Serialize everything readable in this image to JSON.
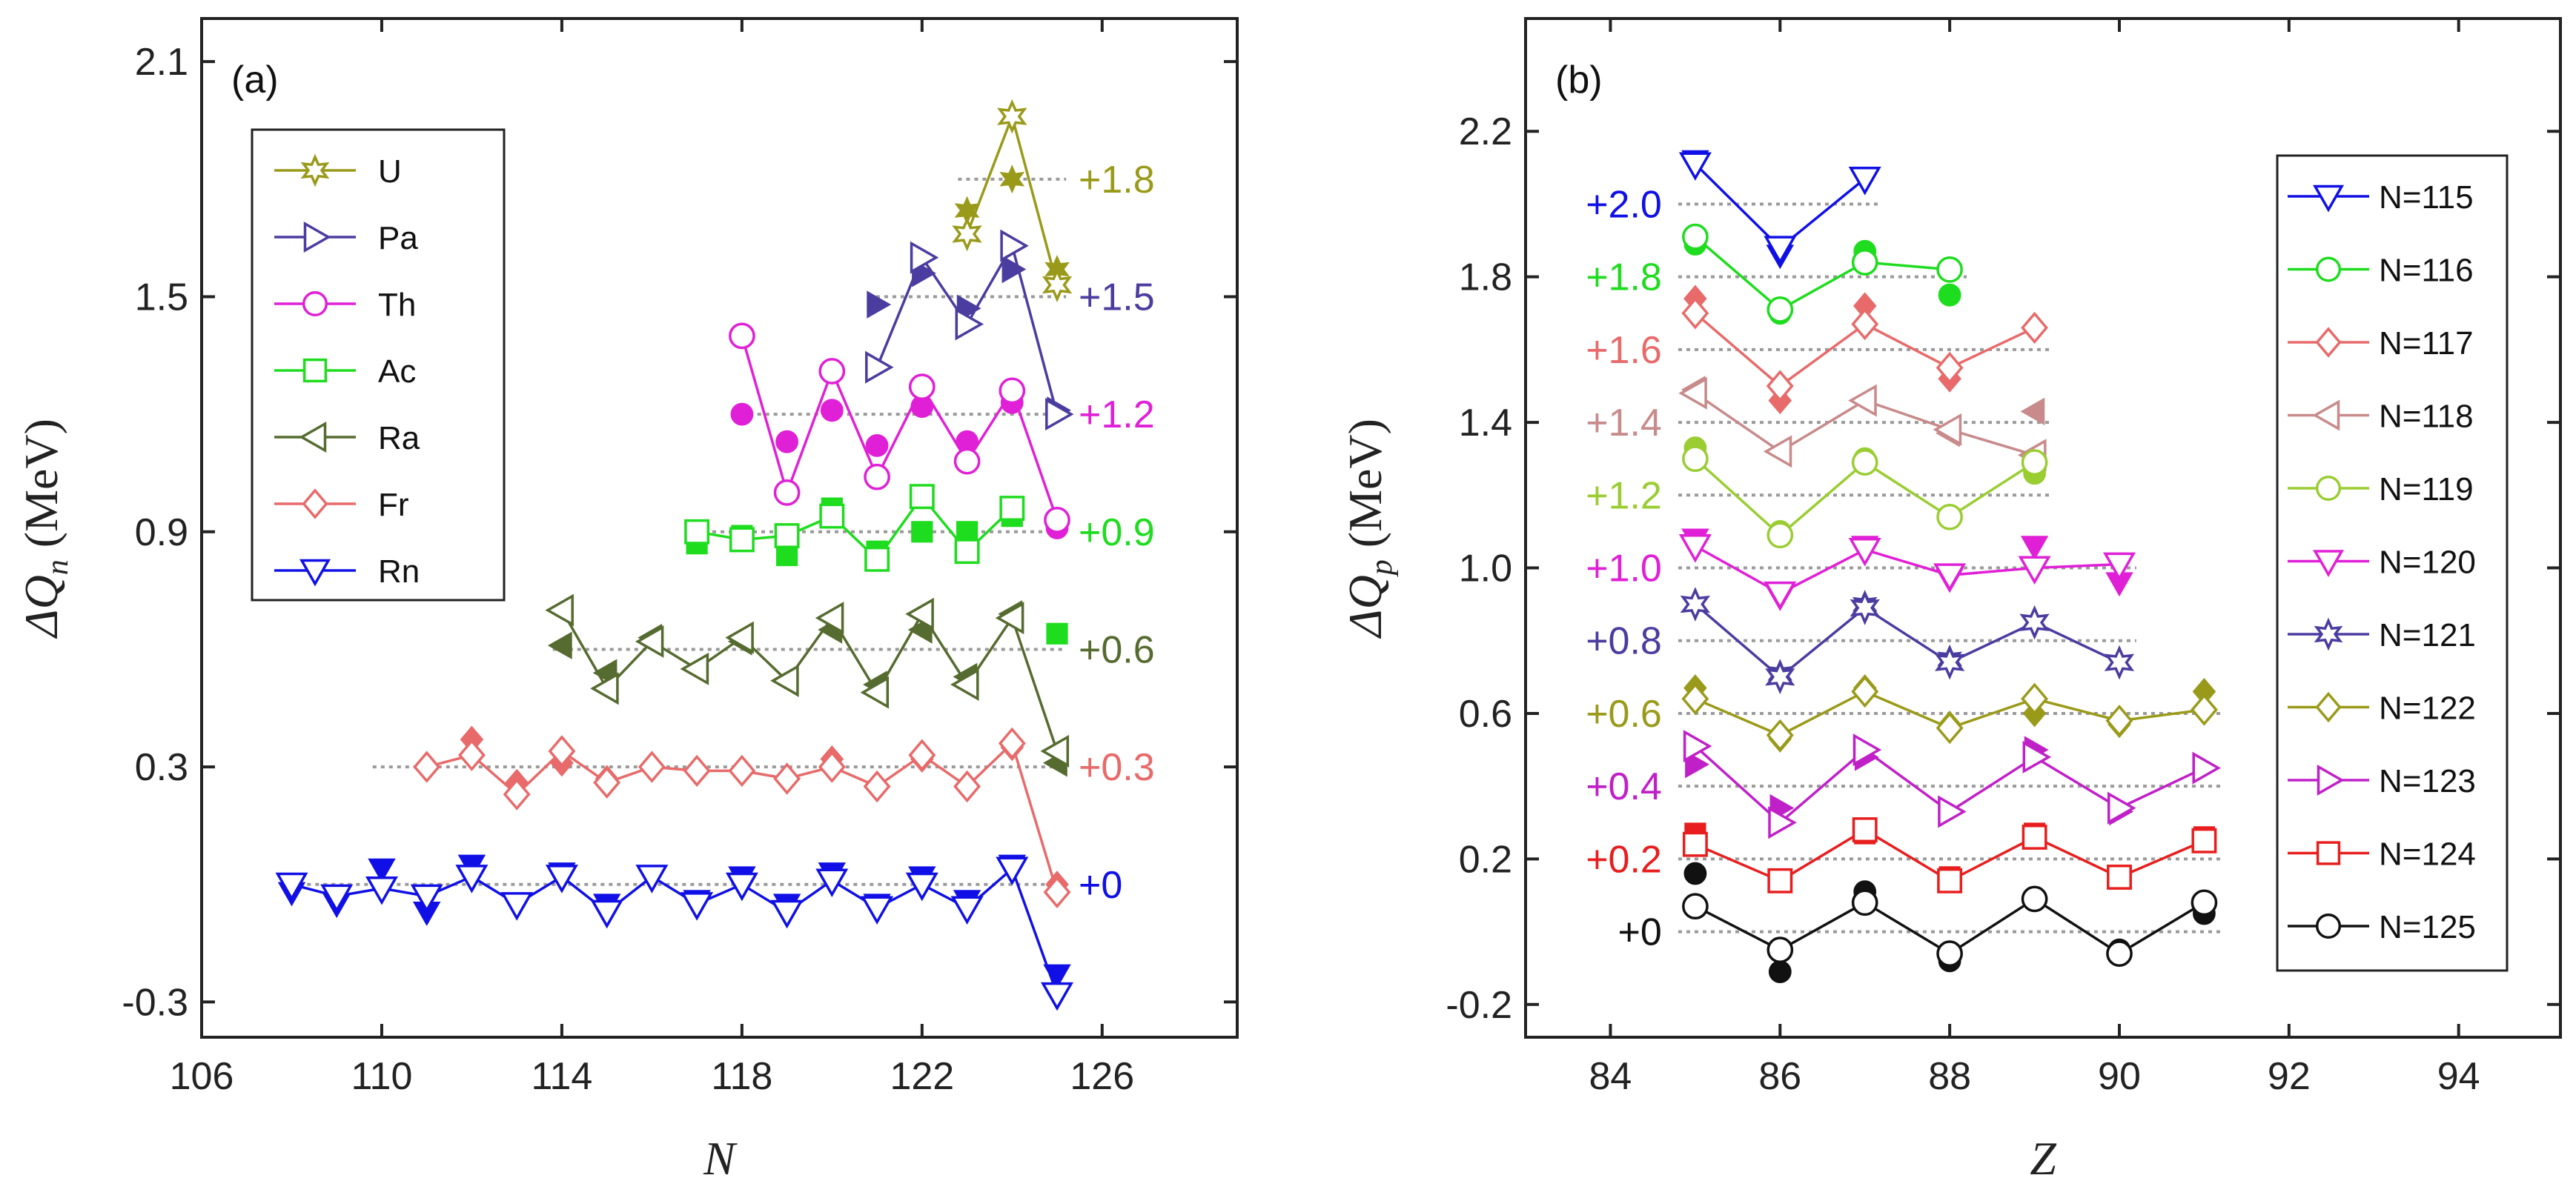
{
  "chart_data": [
    {
      "type": "line",
      "panel_label": "(a)",
      "xlabel": "N",
      "ylabel": "ΔQ",
      "ylabel_sub": "n",
      "ylabel_unit": " (MeV)",
      "xlim": [
        106,
        129
      ],
      "ylim": [
        -0.39,
        2.21
      ],
      "xticks": [
        "106",
        "110",
        "114",
        "118",
        "122",
        "126"
      ],
      "xtick_values": [
        106,
        110,
        114,
        118,
        122,
        126
      ],
      "yticks": [
        "-0.3",
        "0.3",
        "0.9",
        "1.5",
        "2.1"
      ],
      "ytick_values": [
        -0.3,
        0.3,
        0.9,
        1.5,
        2.1
      ],
      "legend_placement": "upper-left",
      "series": [
        {
          "name": "U",
          "color": "#9a9a1a",
          "marker": "star",
          "offset_label": "+1.8",
          "offset": 1.8,
          "x_range": [
            123,
            125
          ],
          "x": [
            123,
            124,
            125
          ],
          "y": [
            1.66,
            1.96,
            1.53
          ],
          "x_filled": [
            123,
            124,
            125
          ],
          "y_filled": [
            1.72,
            1.8,
            1.57
          ]
        },
        {
          "name": "Pa",
          "color": "#4b3ca0",
          "marker": "triangle-right",
          "offset_label": "+1.5",
          "offset": 1.5,
          "x_range": [
            121,
            125
          ],
          "x": [
            121,
            122,
            123,
            124,
            125
          ],
          "y": [
            1.32,
            1.6,
            1.43,
            1.63,
            1.2
          ],
          "x_filled": [
            121,
            122,
            123,
            124,
            125
          ],
          "y_filled": [
            1.48,
            1.56,
            1.47,
            1.57,
            1.21
          ]
        },
        {
          "name": "Th",
          "color": "#e020d6",
          "marker": "circle",
          "offset_label": "+1.2",
          "offset": 1.2,
          "x_range": [
            118,
            125
          ],
          "x": [
            118,
            119,
            120,
            121,
            122,
            123,
            124,
            125
          ],
          "y": [
            1.4,
            1.0,
            1.31,
            1.04,
            1.27,
            1.08,
            1.26,
            0.93
          ],
          "x_filled": [
            118,
            119,
            120,
            121,
            122,
            123,
            124,
            125
          ],
          "y_filled": [
            1.2,
            1.13,
            1.21,
            1.12,
            1.22,
            1.13,
            1.23,
            0.91
          ]
        },
        {
          "name": "Ac",
          "color": "#1edc1e",
          "marker": "square",
          "offset_label": "+0.9",
          "offset": 0.9,
          "x_range": [
            117,
            125
          ],
          "x": [
            117,
            118,
            119,
            120,
            121,
            122,
            123,
            124
          ],
          "y": [
            0.9,
            0.88,
            0.89,
            0.94,
            0.83,
            0.99,
            0.85,
            0.96
          ],
          "x_filled": [
            117,
            118,
            119,
            120,
            121,
            122,
            123,
            124,
            125
          ],
          "y_filled": [
            0.87,
            0.89,
            0.84,
            0.96,
            0.85,
            0.9,
            0.9,
            0.94,
            0.64
          ]
        },
        {
          "name": "Ra",
          "color": "#556b2f",
          "marker": "triangle-left",
          "offset_label": "+0.6",
          "offset": 0.6,
          "x_range": [
            114,
            125
          ],
          "x": [
            114,
            115,
            116,
            117,
            118,
            119,
            120,
            121,
            122,
            123,
            124,
            125
          ],
          "y": [
            0.7,
            0.5,
            0.62,
            0.55,
            0.63,
            0.52,
            0.68,
            0.49,
            0.69,
            0.51,
            0.68,
            0.34
          ],
          "x_filled": [
            114,
            115,
            116,
            117,
            118,
            119,
            120,
            121,
            122,
            123,
            124,
            125
          ],
          "y_filled": [
            0.61,
            0.54,
            0.63,
            0.55,
            0.62,
            0.52,
            0.65,
            0.51,
            0.65,
            0.53,
            0.69,
            0.31
          ]
        },
        {
          "name": "Fr",
          "color": "#e86a6a",
          "marker": "diamond",
          "offset_label": "+0.3",
          "offset": 0.3,
          "x_range": [
            110,
            125
          ],
          "x": [
            111,
            112,
            113,
            114,
            115,
            116,
            117,
            118,
            119,
            120,
            121,
            122,
            123,
            124,
            125
          ],
          "y": [
            0.3,
            0.33,
            0.23,
            0.34,
            0.26,
            0.3,
            0.29,
            0.29,
            0.27,
            0.3,
            0.25,
            0.33,
            0.25,
            0.36,
            -0.02
          ],
          "x_filled": [
            111,
            112,
            113,
            114,
            115,
            116,
            117,
            118,
            119,
            120,
            121,
            122,
            123,
            124,
            125
          ],
          "y_filled": [
            0.3,
            0.37,
            0.26,
            0.31,
            0.27,
            0.3,
            0.29,
            0.29,
            0.27,
            0.32,
            0.25,
            0.32,
            0.25,
            0.35,
            0.0
          ]
        },
        {
          "name": "Rn",
          "color": "#1010e6",
          "marker": "triangle-down",
          "offset_label": "+0",
          "offset": 0,
          "x_range": [
            108,
            125
          ],
          "x": [
            108,
            109,
            110,
            111,
            112,
            113,
            114,
            115,
            116,
            117,
            118,
            119,
            120,
            121,
            122,
            123,
            124,
            125
          ],
          "y": [
            0.0,
            -0.03,
            -0.01,
            -0.03,
            0.02,
            -0.05,
            0.02,
            -0.07,
            0.02,
            -0.05,
            0.0,
            -0.07,
            0.01,
            -0.06,
            0.0,
            -0.06,
            0.04,
            -0.28
          ],
          "x_filled": [
            108,
            109,
            110,
            111,
            112,
            113,
            114,
            115,
            116,
            117,
            118,
            119,
            120,
            121,
            122,
            123,
            124,
            125
          ],
          "y_filled": [
            -0.02,
            -0.05,
            0.04,
            -0.07,
            0.05,
            -0.05,
            0.03,
            -0.05,
            0.02,
            -0.04,
            0.02,
            -0.05,
            0.03,
            -0.05,
            0.02,
            -0.04,
            0.05,
            -0.23
          ]
        }
      ]
    },
    {
      "type": "line",
      "panel_label": "(b)",
      "xlabel": "Z",
      "ylabel": "ΔQ",
      "ylabel_sub": "p",
      "ylabel_unit": " (MeV)",
      "xlim": [
        83,
        95.2
      ],
      "ylim": [
        -0.29,
        2.51
      ],
      "xticks": [
        "84",
        "86",
        "88",
        "90",
        "92",
        "94"
      ],
      "xtick_values": [
        84,
        86,
        88,
        90,
        92,
        94
      ],
      "yticks": [
        "-0.2",
        "0.2",
        "0.6",
        "1.0",
        "1.4",
        "1.8",
        "2.2"
      ],
      "ytick_values": [
        -0.2,
        0.2,
        0.6,
        1.0,
        1.4,
        1.8,
        2.2
      ],
      "legend_placement": "right",
      "series": [
        {
          "name": "N=115",
          "color": "#1010e6",
          "marker": "triangle-down",
          "offset_label": "+2.0",
          "offset": 2.0,
          "x_range": [
            85,
            87
          ],
          "x": [
            85,
            86,
            87
          ],
          "y": [
            2.11,
            1.88,
            2.07
          ],
          "x_filled": [
            85,
            86
          ],
          "y_filled": [
            2.12,
            1.86
          ]
        },
        {
          "name": "N=116",
          "color": "#1edc1e",
          "marker": "circle",
          "offset_label": "+1.8",
          "offset": 1.8,
          "x_range": [
            85,
            88
          ],
          "x": [
            85,
            86,
            87,
            88
          ],
          "y": [
            1.91,
            1.71,
            1.84,
            1.82
          ],
          "x_filled": [
            85,
            86,
            87,
            88
          ],
          "y_filled": [
            1.89,
            1.7,
            1.87,
            1.75
          ]
        },
        {
          "name": "N=117",
          "color": "#e86a6a",
          "marker": "diamond",
          "offset_label": "+1.6",
          "offset": 1.6,
          "x_range": [
            85,
            89
          ],
          "x": [
            85,
            86,
            87,
            88,
            89
          ],
          "y": [
            1.7,
            1.5,
            1.67,
            1.55,
            1.66
          ],
          "x_filled": [
            85,
            86,
            87,
            88,
            89
          ],
          "y_filled": [
            1.74,
            1.46,
            1.72,
            1.52,
            1.66
          ]
        },
        {
          "name": "N=118",
          "color": "#c88a8a",
          "marker": "triangle-left",
          "offset_label": "+1.4",
          "offset": 1.4,
          "x_range": [
            85,
            89
          ],
          "x": [
            85,
            86,
            87,
            88,
            89
          ],
          "y": [
            1.48,
            1.32,
            1.46,
            1.38,
            1.31
          ],
          "x_filled": [
            85,
            86,
            87,
            88,
            89
          ],
          "y_filled": [
            1.49,
            1.32,
            1.46,
            1.37,
            1.43
          ]
        },
        {
          "name": "N=119",
          "color": "#9acd32",
          "marker": "circle",
          "offset_label": "+1.2",
          "offset": 1.2,
          "x_range": [
            85,
            89
          ],
          "x": [
            85,
            86,
            87,
            88,
            89
          ],
          "y": [
            1.3,
            1.09,
            1.29,
            1.14,
            1.29
          ],
          "x_filled": [
            85,
            86,
            87,
            88,
            89
          ],
          "y_filled": [
            1.33,
            1.1,
            1.3,
            1.14,
            1.26
          ]
        },
        {
          "name": "N=120",
          "color": "#e020d6",
          "marker": "triangle-down",
          "offset_label": "+1.0",
          "offset": 1.0,
          "x_range": [
            85,
            90
          ],
          "x": [
            85,
            86,
            87,
            88,
            89,
            90
          ],
          "y": [
            1.06,
            0.93,
            1.05,
            0.98,
            1.0,
            1.01
          ],
          "x_filled": [
            85,
            86,
            87,
            88,
            89,
            90
          ],
          "y_filled": [
            1.08,
            0.92,
            1.06,
            0.97,
            1.06,
            0.96
          ]
        },
        {
          "name": "N=121",
          "color": "#4b3ca0",
          "marker": "star",
          "offset_label": "+0.8",
          "offset": 0.8,
          "x_range": [
            85,
            90
          ],
          "x": [
            85,
            86,
            87,
            88,
            89,
            90
          ],
          "y": [
            0.9,
            0.7,
            0.89,
            0.74,
            0.85,
            0.74
          ],
          "x_filled": [
            85,
            86,
            87,
            88,
            89,
            90
          ],
          "y_filled": [
            0.9,
            0.71,
            0.9,
            0.75,
            0.85,
            0.74
          ]
        },
        {
          "name": "N=122",
          "color": "#9a9a1a",
          "marker": "diamond",
          "offset_label": "+0.6",
          "offset": 0.6,
          "x_range": [
            85,
            91
          ],
          "x": [
            85,
            86,
            87,
            88,
            89,
            90,
            91
          ],
          "y": [
            0.64,
            0.54,
            0.66,
            0.56,
            0.64,
            0.58,
            0.61
          ],
          "x_filled": [
            85,
            86,
            87,
            88,
            89,
            90,
            91
          ],
          "y_filled": [
            0.67,
            0.53,
            0.67,
            0.57,
            0.6,
            0.57,
            0.66
          ]
        },
        {
          "name": "N=123",
          "color": "#c020c8",
          "marker": "triangle-right",
          "offset_label": "+0.4",
          "offset": 0.4,
          "x_range": [
            85,
            91
          ],
          "x": [
            85,
            86,
            87,
            88,
            89,
            90,
            91
          ],
          "y": [
            0.51,
            0.3,
            0.5,
            0.33,
            0.48,
            0.34,
            0.45
          ],
          "x_filled": [
            85,
            86,
            87,
            88,
            89,
            90,
            91
          ],
          "y_filled": [
            0.46,
            0.34,
            0.48,
            0.33,
            0.5,
            0.33,
            0.45
          ]
        },
        {
          "name": "N=124",
          "color": "#e81e1e",
          "marker": "square",
          "offset_label": "+0.2",
          "offset": 0.2,
          "x_range": [
            85,
            91
          ],
          "x": [
            85,
            86,
            87,
            88,
            89,
            90,
            91
          ],
          "y": [
            0.24,
            0.14,
            0.28,
            0.14,
            0.26,
            0.15,
            0.25
          ],
          "x_filled": [
            85,
            86,
            87,
            88,
            89,
            90,
            91
          ],
          "y_filled": [
            0.27,
            0.14,
            0.27,
            0.15,
            0.27,
            0.15,
            0.26
          ]
        },
        {
          "name": "N=125",
          "color": "#111111",
          "marker": "circle",
          "offset_label": "+0",
          "offset": 0,
          "x_range": [
            85,
            91
          ],
          "x": [
            85,
            86,
            87,
            88,
            89,
            90,
            91
          ],
          "y": [
            0.07,
            -0.05,
            0.08,
            -0.06,
            0.09,
            -0.06,
            0.08
          ],
          "x_filled": [
            85,
            86,
            87,
            88,
            89,
            90,
            91
          ],
          "y_filled": [
            0.16,
            -0.11,
            0.11,
            -0.08,
            0.09,
            -0.05,
            0.05
          ]
        }
      ]
    }
  ]
}
